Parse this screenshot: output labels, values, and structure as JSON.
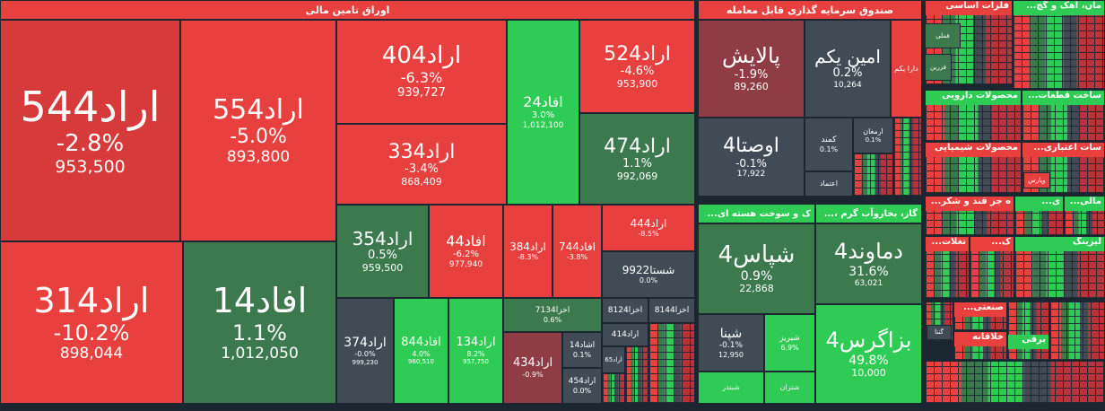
{
  "sectors": {
    "oragh": "اوراق تامین مالی",
    "sandogh": "صندوق سرمایه گذاری قابل معامله",
    "felezat": "فلزات اساسی",
    "ahan": "...مان، آهک و گچ",
    "hasteh": "...ک و سوخت هسته ای",
    "gaz": "...، گاز، بخاروآب گرم",
    "darooyi": "محصولات دارویی",
    "ghataat": "...ساخت قطعات",
    "shimiyayi": "محصولات شیمیایی",
    "etebari": "...سات اعتباری",
    "ghand": "...ه جز قند و شکر",
    "sanati": "...صنعتی",
    "khalghe": "خلاقانه",
    "bargh": "برقی",
    "mali": "...مالی",
    "lize": "لیزینگ",
    "kashi": "...ک",
    "kala": "...ی",
    "tamin": "...تغلات"
  },
  "tiles": {
    "erad544": {
      "sym": "اراد544",
      "pct": "-2.8%",
      "vol": "953,500"
    },
    "erad554": {
      "sym": "اراد554",
      "pct": "-5.0%",
      "vol": "893,800"
    },
    "erad314": {
      "sym": "اراد314",
      "pct": "-10.2%",
      "vol": "898,044"
    },
    "afad14": {
      "sym": "افاد14",
      "pct": "1.1%",
      "vol": "1,012,050"
    },
    "erad404": {
      "sym": "اراد404",
      "pct": "-6.3%",
      "vol": "939,727"
    },
    "erad334": {
      "sym": "اراد334",
      "pct": "-3.4%",
      "vol": "868,409"
    },
    "afad24": {
      "sym": "افاد24",
      "pct": "3.0%",
      "vol": "1,012,100"
    },
    "erad524": {
      "sym": "اراد524",
      "pct": "-4.6%",
      "vol": "953,900"
    },
    "erad474": {
      "sym": "اراد474",
      "pct": "1.1%",
      "vol": "992,069"
    },
    "erad354": {
      "sym": "اراد354",
      "pct": "0.5%",
      "vol": "959,500"
    },
    "afad44": {
      "sym": "افاد44",
      "pct": "-6.2%",
      "vol": "977,940"
    },
    "erad384": {
      "sym": "اراد384",
      "pct": "-8.3%"
    },
    "afad744": {
      "sym": "افاد744",
      "pct": "-3.8%"
    },
    "erad444": {
      "sym": "اراد444",
      "pct": "-8.5%"
    },
    "shasta9922": {
      "sym": "شستا9922",
      "pct": "0.0%"
    },
    "erad374": {
      "sym": "اراد374",
      "pct": "-0.0%",
      "vol": "999,230"
    },
    "afad844": {
      "sym": "افاد844",
      "pct": "4.0%",
      "vol": "960,510"
    },
    "erad134": {
      "sym": "اراد134",
      "pct": "8.2%",
      "vol": "957,750"
    },
    "akhza7134": {
      "sym": "اخزا7134",
      "pct": "0.6%"
    },
    "akhza8124": {
      "sym": "اخزا8124"
    },
    "akhza8144": {
      "sym": "اخزا8144"
    },
    "erad414": {
      "sym": "اراد414"
    },
    "erad434": {
      "sym": "اراد434",
      "pct": "-0.9%"
    },
    "eshad14": {
      "sym": "اشاد14",
      "pct": "0.1%"
    },
    "erad454": {
      "sym": "اراد454",
      "pct": "0.0%"
    },
    "erad65": {
      "sym": "اراد65"
    },
    "palayesh": {
      "sym": "پالایش",
      "pct": "-1.9%",
      "vol": "89,260"
    },
    "aminyekom": {
      "sym": "امین یکم",
      "pct": "0.2%",
      "vol": "10,264"
    },
    "darayekom": {
      "sym": "دارا یکم"
    },
    "ovsta4": {
      "sym": "اوصتا4",
      "pct": "-0.1%",
      "vol": "17,922"
    },
    "kamand": {
      "sym": "کمند",
      "pct": "0.1%"
    },
    "armaghan": {
      "sym": "ارمغان",
      "pct": "0.1%"
    },
    "etemad": {
      "sym": "اعتماد"
    },
    "shepas4": {
      "sym": "شپاس4",
      "pct": "0.9%",
      "vol": "22,868"
    },
    "shepna": {
      "sym": "شپنا",
      "pct": "-0.1%",
      "vol": "12,950"
    },
    "shiraz": {
      "sym": "شیریز",
      "pct": "6.9%"
    },
    "shebandar": {
      "sym": "شبندر"
    },
    "shetran": {
      "sym": "شتران"
    },
    "damavand4": {
      "sym": "دماوند4",
      "pct": "31.6%",
      "vol": "63,021"
    },
    "bazagros4": {
      "sym": "بزاگرس4",
      "pct": "49.8%",
      "vol": "10,000"
    },
    "fameli": {
      "sym": "فملی"
    },
    "fazar": {
      "sym": "فزرین"
    },
    "vepars": {
      "sym": "وپارس"
    },
    "ganta": {
      "sym": "گنتا"
    }
  },
  "colors": {
    "red": "#e8403e",
    "dark_red": "#b8333a",
    "green": "#2ecb55",
    "dark_green": "#3c7a4e",
    "gray": "#414b55",
    "background": "#1b2631"
  }
}
